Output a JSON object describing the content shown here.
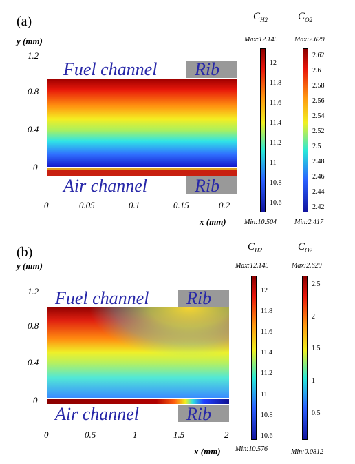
{
  "panels": [
    {
      "label": "(a)",
      "y_axis_label": "y (mm)",
      "x_axis_label": "x (mm)",
      "y_ticks": [
        "1.2",
        "0.8",
        "0.4",
        "0"
      ],
      "x_ticks": [
        "0",
        "0.05",
        "0.1",
        "0.15",
        "0.2"
      ],
      "fuel_channel_label": "Fuel channel",
      "air_channel_label": "Air channel",
      "rib_top_label": "Rib",
      "rib_bottom_label": "Rib",
      "colorbars": [
        {
          "title_main": "C",
          "title_sub": "H2",
          "max_label": "Max:12.145",
          "min_label": "Min:10.504",
          "ticks": [
            "12",
            "11.8",
            "11.6",
            "11.4",
            "11.2",
            "11",
            "10.8",
            "10.6"
          ]
        },
        {
          "title_main": "C",
          "title_sub": "O2",
          "max_label": "Max:2.629",
          "min_label": "Min:2.417",
          "ticks": [
            "2.62",
            "2.6",
            "2.58",
            "2.56",
            "2.54",
            "2.52",
            "2.5",
            "2.48",
            "2.46",
            "2.44",
            "2.42"
          ]
        }
      ]
    },
    {
      "label": "(b)",
      "y_axis_label": "y (mm)",
      "x_axis_label": "x (mm)",
      "y_ticks": [
        "1.2",
        "0.8",
        "0.4",
        "0"
      ],
      "x_ticks": [
        "0",
        "0.5",
        "1",
        "1.5",
        "2"
      ],
      "fuel_channel_label": "Fuel channel",
      "air_channel_label": "Air channel",
      "rib_top_label": "Rib",
      "rib_bottom_label": "Rib",
      "colorbars": [
        {
          "title_main": "C",
          "title_sub": "H2",
          "max_label": "Max:12.145",
          "min_label": "Min:10.576",
          "ticks": [
            "12",
            "11.8",
            "11.6",
            "11.4",
            "11.2",
            "11",
            "10.8",
            "10.6"
          ]
        },
        {
          "title_main": "C",
          "title_sub": "O2",
          "max_label": "Max:2.629",
          "min_label": "Min:0.0812",
          "ticks": [
            "2.5",
            "2",
            "1.5",
            "1",
            "0.5"
          ]
        }
      ]
    }
  ],
  "colors": {
    "rib": "#999999",
    "channel_text": "#2828a8"
  }
}
